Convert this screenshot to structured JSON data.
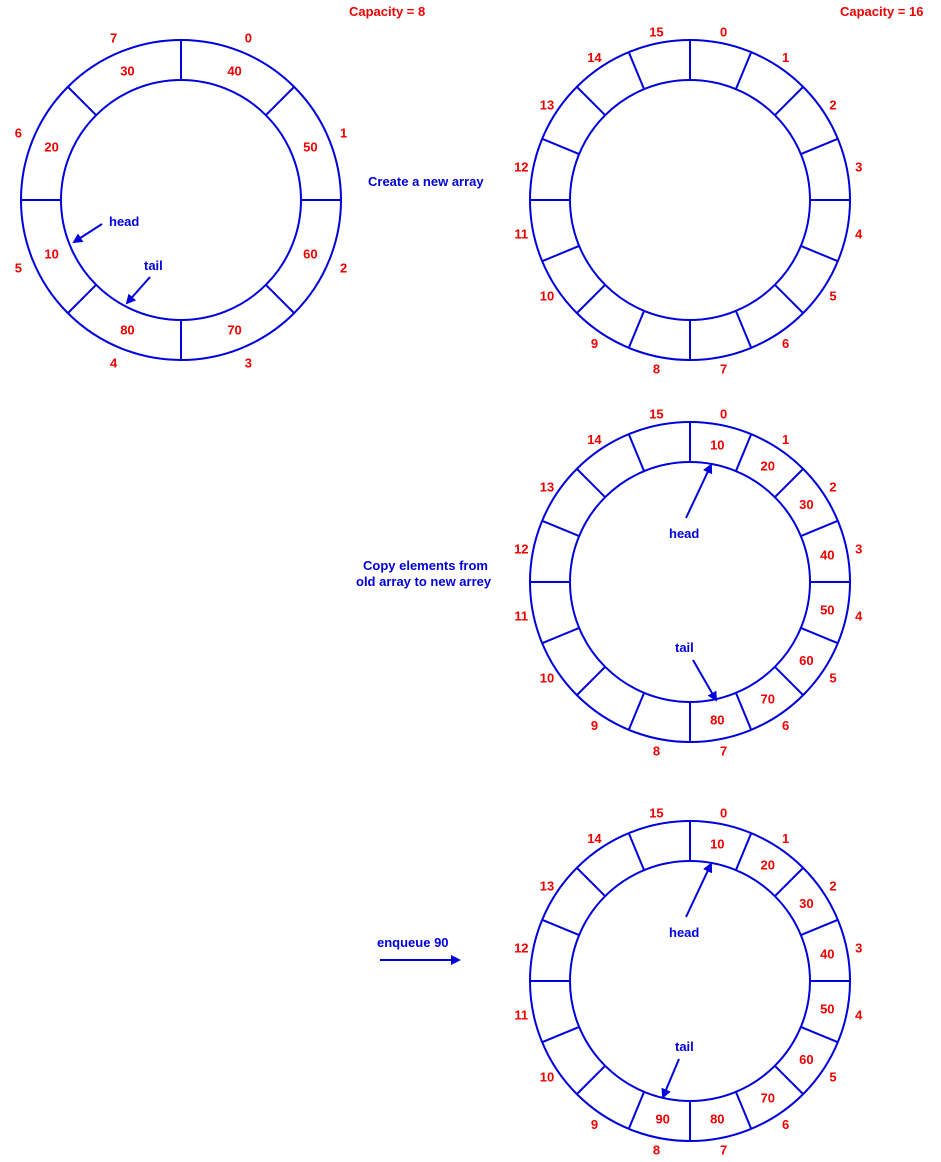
{
  "colors": {
    "ring": "#0000dd",
    "value_text": "#ee0000",
    "label_text": "#0000dd",
    "background": "#ffffff"
  },
  "rings": [
    {
      "id": "old-array",
      "capacity_label": "Capacity = 8",
      "slots": 8,
      "index_labels": [
        "0",
        "1",
        "2",
        "3",
        "4",
        "5",
        "6",
        "7"
      ],
      "values": [
        "40",
        "50",
        "60",
        "70",
        "80",
        "10",
        "20",
        "30"
      ],
      "head_label": "head",
      "tail_label": "tail",
      "head_index": 5,
      "tail_index": 4
    },
    {
      "id": "new-array-empty",
      "capacity_label": "Capacity = 16",
      "slots": 16,
      "index_labels": [
        "0",
        "1",
        "2",
        "3",
        "4",
        "5",
        "6",
        "7",
        "8",
        "9",
        "10",
        "11",
        "12",
        "13",
        "14",
        "15"
      ],
      "values": [
        "",
        "",
        "",
        "",
        "",
        "",
        "",
        "",
        "",
        "",
        "",
        "",
        "",
        "",
        "",
        ""
      ]
    },
    {
      "id": "new-array-copied",
      "slots": 16,
      "index_labels": [
        "0",
        "1",
        "2",
        "3",
        "4",
        "5",
        "6",
        "7",
        "8",
        "9",
        "10",
        "11",
        "12",
        "13",
        "14",
        "15"
      ],
      "values": [
        "10",
        "20",
        "30",
        "40",
        "50",
        "60",
        "70",
        "80",
        "",
        "",
        "",
        "",
        "",
        "",
        "",
        ""
      ],
      "head_label": "head",
      "tail_label": "tail",
      "head_index": 0,
      "tail_index": 7
    },
    {
      "id": "new-array-enqueued",
      "slots": 16,
      "index_labels": [
        "0",
        "1",
        "2",
        "3",
        "4",
        "5",
        "6",
        "7",
        "8",
        "9",
        "10",
        "11",
        "12",
        "13",
        "14",
        "15"
      ],
      "values": [
        "10",
        "20",
        "30",
        "40",
        "50",
        "60",
        "70",
        "80",
        "90",
        "",
        "",
        "",
        "",
        "",
        "",
        ""
      ],
      "head_label": "head",
      "tail_label": "tail",
      "head_index": 0,
      "tail_index": 8
    }
  ],
  "steps": {
    "create": "Create a new array",
    "copy_line1": "Copy elements from",
    "copy_line2": "old array to new arrey",
    "enqueue": "enqueue 90"
  }
}
